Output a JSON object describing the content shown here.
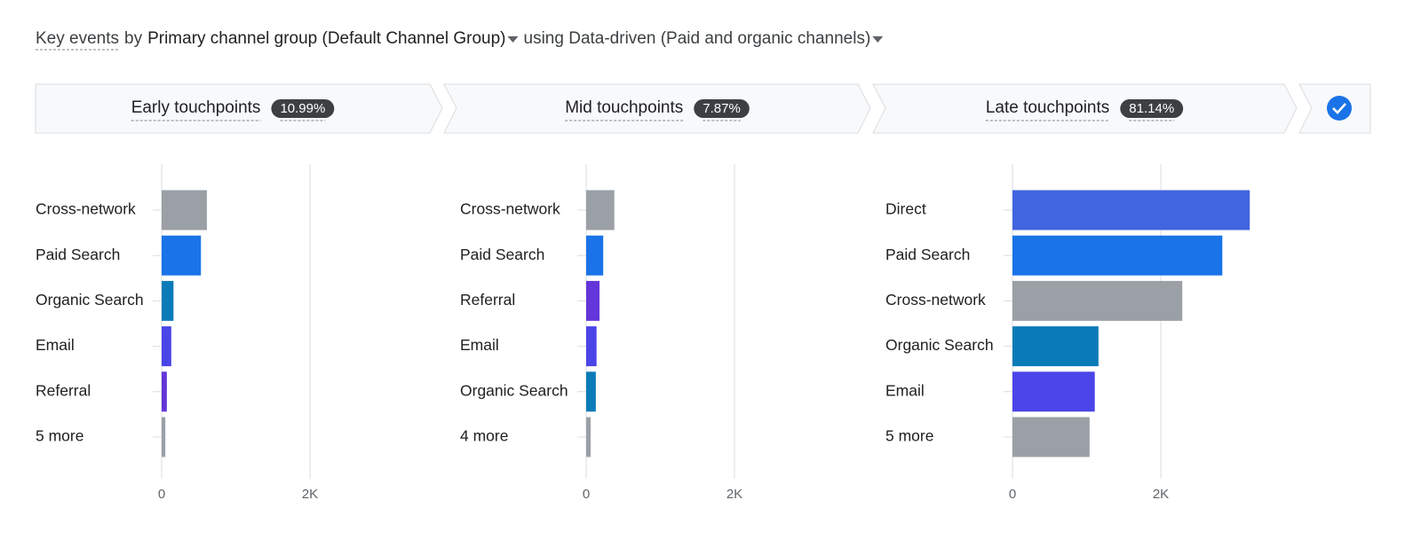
{
  "header": {
    "metric": "Key events",
    "by": "by",
    "dimension": "Primary channel group (Default Channel Group)",
    "using": "using Data-driven (Paid and organic channels)"
  },
  "stages": [
    {
      "label": "Early touchpoints",
      "share": "10.99%"
    },
    {
      "label": "Mid touchpoints",
      "share": "7.87%"
    },
    {
      "label": "Late touchpoints",
      "share": "81.14%"
    }
  ],
  "chart_data": [
    {
      "type": "hbar",
      "categories": [
        "Cross-network",
        "Paid Search",
        "Organic Search",
        "Email",
        "Referral",
        "5 more"
      ],
      "values": [
        610,
        530,
        160,
        130,
        70,
        50
      ],
      "colors": [
        "#9aa0a6",
        "#1a73e8",
        "#0b7bb8",
        "#4a45e8",
        "#6435d8",
        "#9aa0a6"
      ],
      "xlim": [
        0,
        3500
      ],
      "xticks": [
        0,
        {
          "value": 2000,
          "label": "2K"
        }
      ],
      "grid": true
    },
    {
      "type": "hbar",
      "categories": [
        "Cross-network",
        "Paid Search",
        "Referral",
        "Email",
        "Organic Search",
        "4 more"
      ],
      "values": [
        380,
        230,
        180,
        140,
        130,
        60
      ],
      "colors": [
        "#9aa0a6",
        "#1a73e8",
        "#6435d8",
        "#4a45e8",
        "#0b7bb8",
        "#9aa0a6"
      ],
      "xlim": [
        0,
        3500
      ],
      "xticks": [
        0,
        {
          "value": 2000,
          "label": "2K"
        }
      ],
      "grid": true
    },
    {
      "type": "hbar",
      "categories": [
        "Direct",
        "Paid Search",
        "Cross-network",
        "Organic Search",
        "Email",
        "5 more"
      ],
      "values": [
        3200,
        2830,
        2290,
        1160,
        1110,
        1040
      ],
      "colors": [
        "#4165e0",
        "#1a73e8",
        "#9aa0a6",
        "#0b7bb8",
        "#4a45e8",
        "#9aa0a6"
      ],
      "xlim": [
        0,
        3500
      ],
      "xticks": [
        0,
        {
          "value": 2000,
          "label": "2K"
        }
      ],
      "grid": true
    }
  ]
}
